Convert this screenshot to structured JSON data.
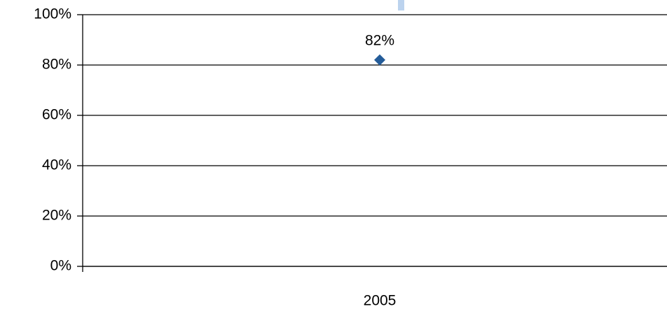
{
  "chart_data": {
    "type": "line",
    "categories": [
      "2005"
    ],
    "values": [
      82
    ],
    "value_labels": [
      "82%"
    ],
    "color": "#245c99",
    "ylim": [
      0,
      100
    ],
    "yticks": [
      {
        "value": 0,
        "label": "0%"
      },
      {
        "value": 20,
        "label": "20%"
      },
      {
        "value": 40,
        "label": "40%"
      },
      {
        "value": 60,
        "label": "60%"
      },
      {
        "value": 80,
        "label": "80%"
      },
      {
        "value": 100,
        "label": "100%"
      }
    ],
    "grid": true
  }
}
